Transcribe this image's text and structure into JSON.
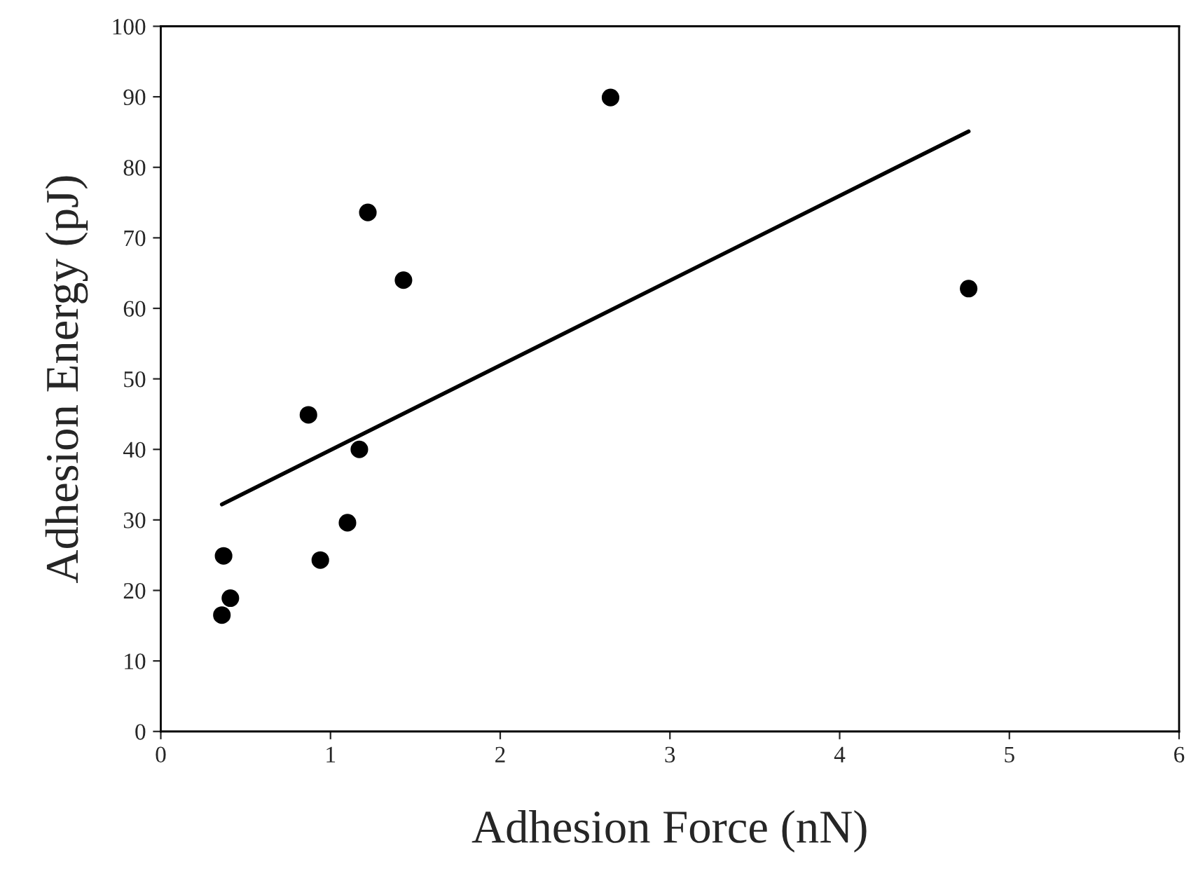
{
  "chart_data": {
    "type": "scatter",
    "xlabel": "Adhesion Force (nN)",
    "ylabel": "Adhesion Energy (pJ)",
    "xlim": [
      0,
      6
    ],
    "ylim": [
      0,
      100
    ],
    "xticks": [
      0,
      1,
      2,
      3,
      4,
      5,
      6
    ],
    "yticks": [
      0,
      10,
      20,
      30,
      40,
      50,
      60,
      70,
      80,
      90,
      100
    ],
    "grid": false,
    "marker": "circle",
    "series": [
      {
        "color": "#000000",
        "x": [
          0.36,
          0.37,
          0.41,
          0.87,
          0.94,
          1.1,
          1.17,
          1.22,
          1.43,
          2.65,
          4.76
        ],
        "values": [
          16.5,
          24.9,
          18.9,
          44.9,
          24.3,
          29.6,
          40.0,
          73.6,
          64.0,
          89.9,
          62.8
        ]
      },
      {
        "type": "line",
        "color": "#000000",
        "x": [
          0.36,
          4.76
        ],
        "values": [
          32.2,
          85.1
        ],
        "marker": "none",
        "line_style": "solid"
      }
    ]
  }
}
